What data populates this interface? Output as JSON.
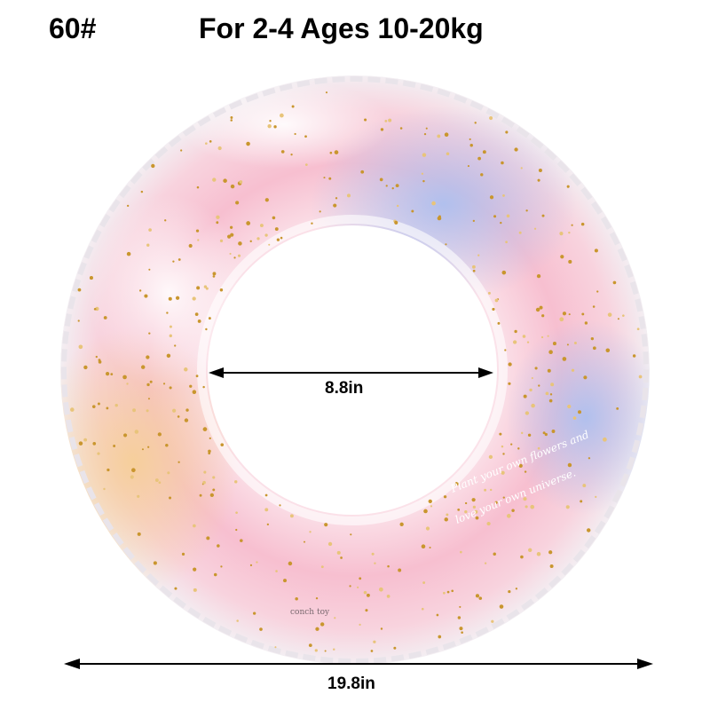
{
  "header": {
    "size_code": "60#",
    "age_weight": "For 2-4 Ages 10-20kg"
  },
  "dimensions": {
    "inner_diameter": "8.8in",
    "outer_diameter": "19.8in"
  },
  "product": {
    "printed_slogan": "Plant your own flowers and love your own universe.",
    "brand_label": "conch toy",
    "colors": {
      "pink": "#f4b3c4",
      "blue": "#b9c8f0",
      "peach": "#f6d3a6",
      "glitter": "#c9962e"
    }
  }
}
